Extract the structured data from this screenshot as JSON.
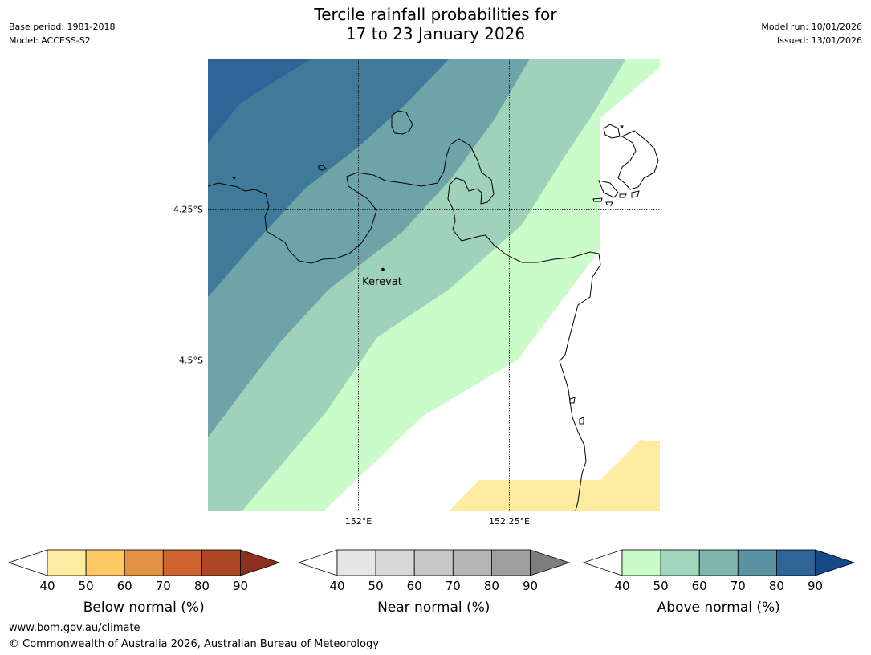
{
  "header": {
    "title_line1": "Tercile rainfall probabilities for",
    "title_line2": "17 to 23 January 2026",
    "base_period": "Base period: 1981-2018",
    "model": "Model: ACCESS-S2",
    "model_run": "Model run: 10/01/2026",
    "issued": "Issued: 13/01/2026"
  },
  "map": {
    "lat_labels": [
      "4.25°S",
      "4.5°S"
    ],
    "lon_labels": [
      "152°E",
      "152.25°E"
    ],
    "place": "Kerevat",
    "colors": {
      "above_90": "#2f6498",
      "above_80": "#3f7b99",
      "above_70": "#6ea4a8",
      "above_60": "#9fd1bb",
      "above_50": "#c9fcc9",
      "below_50": "#feeda0"
    }
  },
  "colorbars": [
    {
      "label": "Below normal (%)",
      "ticks": [
        "40",
        "50",
        "60",
        "70",
        "80",
        "90"
      ],
      "colors": [
        "#feeda0",
        "#fec964",
        "#e19343",
        "#cd6430",
        "#ae4624",
        "#8e3020"
      ]
    },
    {
      "label": "Near normal (%)",
      "ticks": [
        "40",
        "50",
        "60",
        "70",
        "80",
        "90"
      ],
      "colors": [
        "#e6e6e6",
        "#d8d8d8",
        "#c8c8c8",
        "#b5b5b5",
        "#9f9f9f",
        "#7d7d7d"
      ]
    },
    {
      "label": "Above normal (%)",
      "ticks": [
        "40",
        "50",
        "60",
        "70",
        "80",
        "90"
      ],
      "colors": [
        "#c9fcc9",
        "#a2d7bd",
        "#81b6b0",
        "#5a93a1",
        "#2f6498",
        "#134a87"
      ]
    }
  ],
  "footer": {
    "url": "www.bom.gov.au/climate",
    "copyright": "© Commonwealth of Australia 2026, Australian Bureau of Meteorology"
  }
}
